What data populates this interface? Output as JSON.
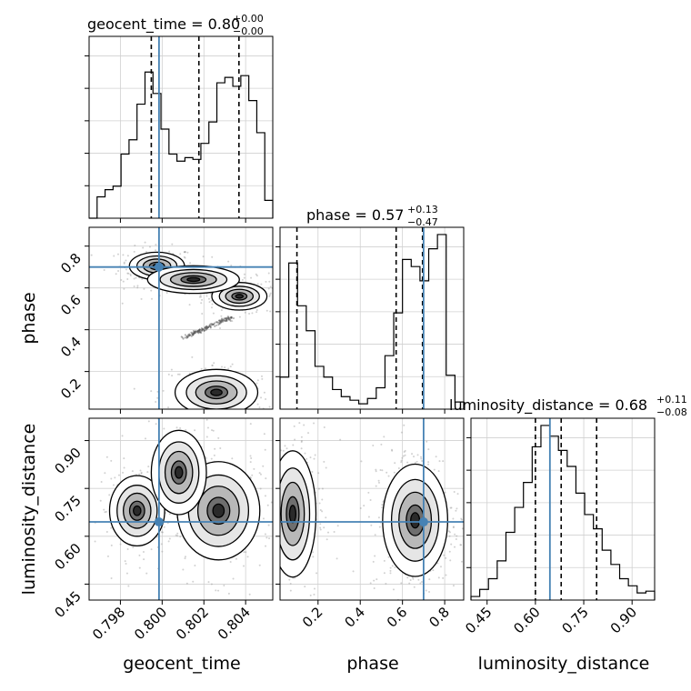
{
  "chart_data": {
    "type": "corner",
    "parameters": [
      {
        "name": "geocent_time",
        "label": "geocent_time",
        "title": "geocent_time = 0.80",
        "median": "0.80",
        "plus": "+0.00",
        "minus": "−0.00",
        "range": [
          0.7965,
          0.8053
        ],
        "quantiles": [
          0.79948,
          0.80176,
          0.80368
        ],
        "truth": 0.79985
      },
      {
        "name": "phase",
        "label": "phase",
        "title": "phase = 0.57",
        "median": "0.57",
        "plus": "+0.13",
        "minus": "−0.47",
        "range": [
          0.02,
          0.89
        ],
        "quantiles": [
          0.1,
          0.57,
          0.695
        ],
        "truth": 0.7
      },
      {
        "name": "luminosity_distance",
        "label": "luminosity_distance",
        "title": "luminosity_distance = 0.68",
        "median": "0.68",
        "plus": "+0.11",
        "minus": "−0.08",
        "range": [
          0.4,
          0.97
        ],
        "quantiles": [
          0.6,
          0.68,
          0.79
        ],
        "truth": 0.645
      }
    ],
    "ticks": {
      "geocent_time": [
        0.798,
        0.8,
        0.802,
        0.804
      ],
      "geocent_time_labels": [
        "0.798",
        "0.800",
        "0.802",
        "0.804"
      ],
      "phase": [
        0.2,
        0.4,
        0.6,
        0.8
      ],
      "phase_labels": [
        "0.2",
        "0.4",
        "0.6",
        "0.8"
      ],
      "luminosity_distance": [
        0.45,
        0.6,
        0.75,
        0.9
      ],
      "luminosity_distance_labels": [
        "0.45",
        "0.60",
        "0.75",
        "0.90"
      ]
    },
    "histograms": {
      "geocent_time": [
        0.0,
        0.12,
        0.16,
        0.18,
        0.36,
        0.44,
        0.64,
        0.82,
        0.7,
        0.5,
        0.36,
        0.32,
        0.34,
        0.33,
        0.42,
        0.54,
        0.76,
        0.79,
        0.74,
        0.8,
        0.66,
        0.48,
        0.1
      ],
      "phase": [
        0.18,
        0.82,
        0.58,
        0.44,
        0.24,
        0.18,
        0.11,
        0.07,
        0.05,
        0.03,
        0.06,
        0.12,
        0.3,
        0.54,
        0.84,
        0.8,
        0.72,
        0.9,
        0.98,
        0.19,
        0.04
      ],
      "luminosity_distance": [
        0.02,
        0.06,
        0.12,
        0.22,
        0.38,
        0.52,
        0.66,
        0.86,
        0.98,
        0.92,
        0.84,
        0.75,
        0.6,
        0.48,
        0.4,
        0.28,
        0.2,
        0.12,
        0.08,
        0.04,
        0.05
      ]
    },
    "modes": {
      "geocent_time_vs_phase": [
        {
          "x": 0.79975,
          "y": 0.705,
          "sx": 0.0006,
          "sy": 0.03,
          "w": 0.3
        },
        {
          "x": 0.8037,
          "y": 0.56,
          "sx": 0.0006,
          "sy": 0.03,
          "w": 0.3
        },
        {
          "x": 0.8015,
          "y": 0.64,
          "sx": 0.001,
          "sy": 0.03,
          "w": 0.12
        },
        {
          "x": 0.8026,
          "y": 0.1,
          "sx": 0.0009,
          "sy": 0.05,
          "w": 0.28
        }
      ],
      "geocent_time_vs_luminosity_distance": [
        {
          "x": 0.7988,
          "y": 0.68,
          "sx": 0.0006,
          "sy": 0.05,
          "w": 0.25
        },
        {
          "x": 0.8027,
          "y": 0.68,
          "sx": 0.0009,
          "sy": 0.07,
          "w": 0.35
        },
        {
          "x": 0.8008,
          "y": 0.8,
          "sx": 0.0006,
          "sy": 0.06,
          "w": 0.2
        }
      ],
      "phase_vs_luminosity_distance": [
        {
          "x": 0.08,
          "y": 0.67,
          "sx": 0.05,
          "sy": 0.09,
          "w": 0.4
        },
        {
          "x": 0.66,
          "y": 0.65,
          "sx": 0.07,
          "sy": 0.08,
          "w": 0.6
        }
      ]
    }
  }
}
